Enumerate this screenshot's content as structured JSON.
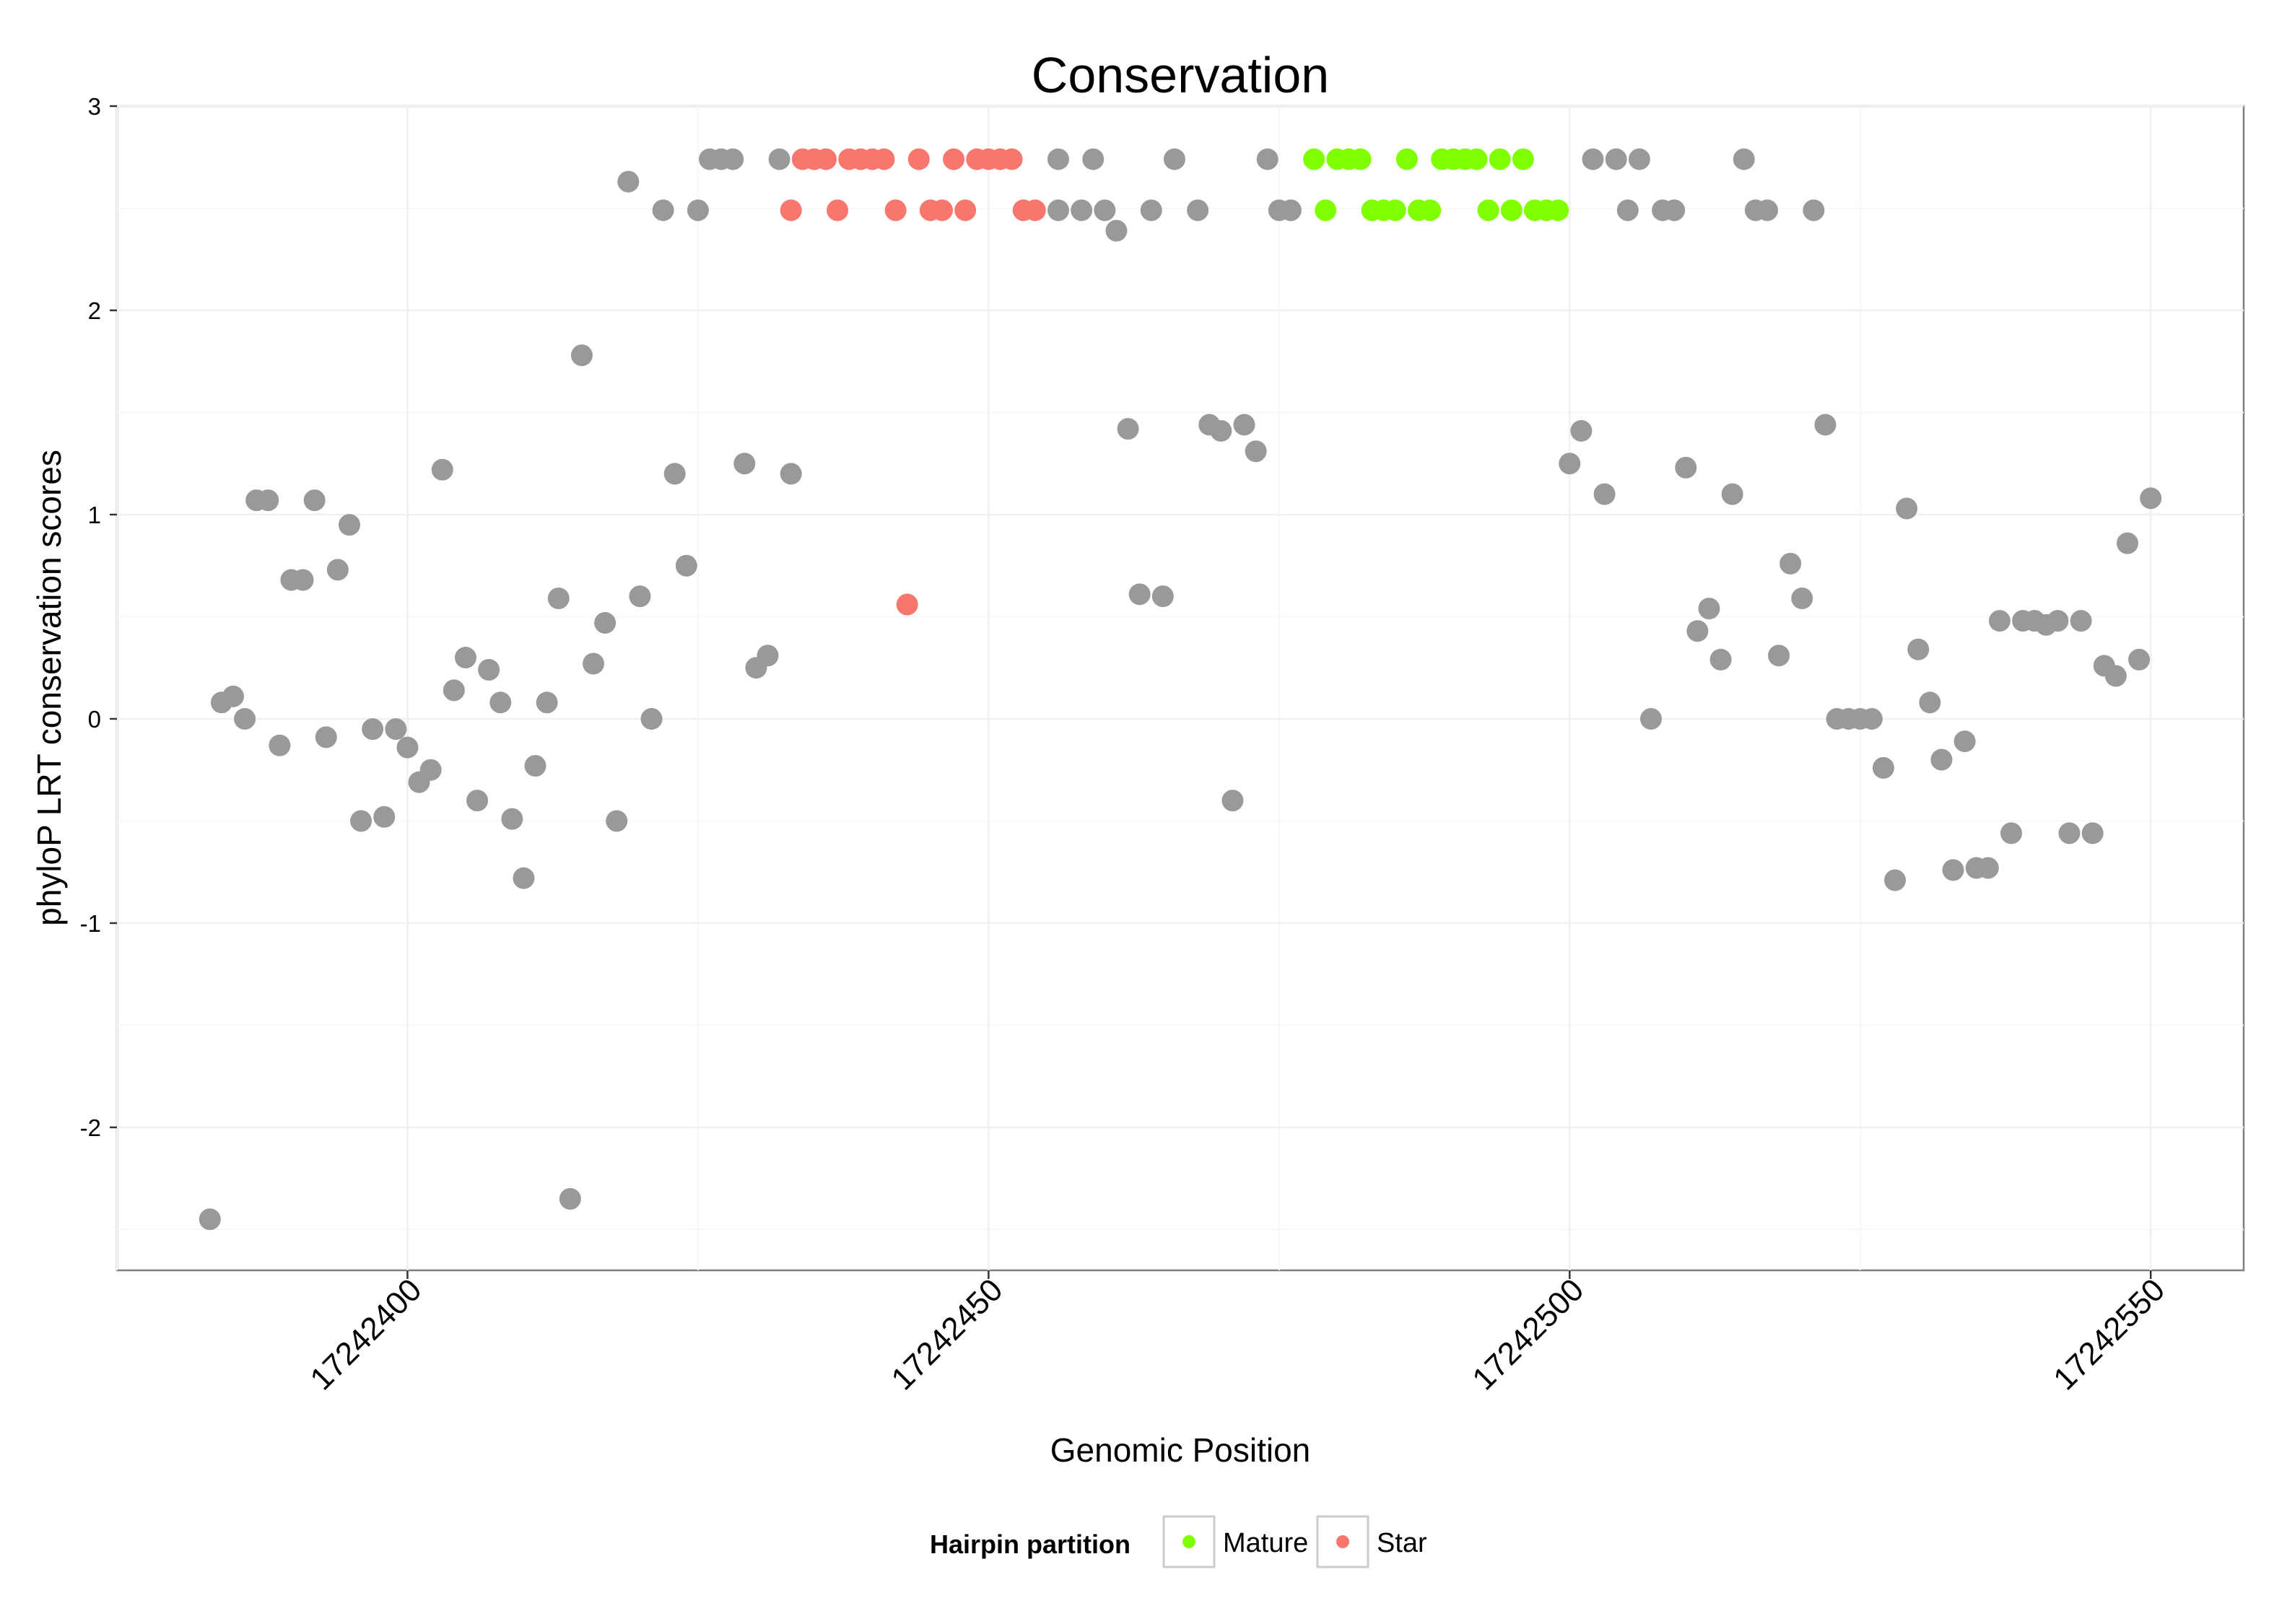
{
  "chart_data": {
    "type": "scatter",
    "title": "Conservation",
    "xlabel": "Genomic Position",
    "ylabel": "phyloP LRT conservation scores",
    "xlim": [
      17242375,
      17242558
    ],
    "ylim": [
      -2.7,
      3
    ],
    "x_ticks": [
      17242400,
      17242450,
      17242500,
      17242550
    ],
    "x_tick_labels": [
      "17242400",
      "17242450",
      "17242500",
      "17242550"
    ],
    "y_ticks": [
      -2,
      -1,
      0,
      1,
      2,
      3
    ],
    "y_tick_labels": [
      "-2",
      "-1",
      "0",
      "1",
      "2",
      "3"
    ],
    "grid": true,
    "legend": {
      "title": "Hairpin partition",
      "position": "bottom",
      "entries": [
        {
          "label": "Mature",
          "color": "#7FFF00"
        },
        {
          "label": "Star",
          "color": "#F8766D"
        }
      ]
    },
    "colors": {
      "other": "#999999",
      "mature": "#7FFF00",
      "star": "#F8766D"
    },
    "series": [
      {
        "partition": "other",
        "color": "#999999",
        "x": [
          17242383,
          17242384,
          17242385,
          17242386,
          17242387,
          17242388,
          17242389,
          17242390,
          17242391,
          17242392,
          17242393,
          17242394,
          17242395,
          17242396,
          17242397,
          17242398,
          17242399,
          17242400,
          17242401,
          17242402,
          17242403,
          17242404,
          17242405,
          17242406,
          17242407,
          17242408,
          17242409,
          17242410,
          17242411,
          17242412,
          17242413,
          17242414,
          17242415,
          17242416,
          17242417,
          17242418,
          17242419,
          17242420,
          17242421,
          17242422,
          17242423,
          17242424,
          17242425,
          17242426,
          17242427,
          17242428,
          17242429,
          17242430,
          17242431,
          17242432,
          17242433,
          17242456,
          17242456,
          17242458,
          17242459,
          17242460,
          17242461,
          17242462,
          17242463,
          17242464,
          17242465,
          17242466,
          17242468,
          17242469,
          17242470,
          17242471,
          17242472,
          17242473,
          17242474,
          17242475,
          17242476,
          17242500,
          17242501,
          17242502,
          17242503,
          17242504,
          17242505,
          17242506,
          17242507,
          17242508,
          17242509,
          17242510,
          17242511,
          17242512,
          17242513,
          17242514,
          17242515,
          17242516,
          17242517,
          17242518,
          17242519,
          17242520,
          17242521,
          17242522,
          17242523,
          17242524,
          17242525,
          17242526,
          17242527,
          17242528,
          17242529,
          17242530,
          17242531,
          17242532,
          17242533,
          17242534,
          17242535,
          17242536,
          17242537,
          17242538,
          17242539,
          17242540,
          17242541,
          17242542,
          17242543,
          17242544,
          17242545,
          17242546,
          17242547,
          17242548,
          17242549,
          17242550
        ],
        "y": [
          -2.45,
          0.08,
          0.11,
          0,
          1.07,
          1.07,
          -0.13,
          0.68,
          0.68,
          1.07,
          -0.09,
          0.73,
          0.95,
          -0.5,
          -0.05,
          -0.48,
          -0.05,
          -0.14,
          -0.31,
          -0.25,
          1.22,
          0.14,
          0.3,
          -0.4,
          0.24,
          0.08,
          -0.49,
          -0.78,
          -0.23,
          0.08,
          0.59,
          -2.35,
          1.78,
          0.27,
          0.47,
          -0.5,
          2.63,
          0.6,
          0,
          2.49,
          1.2,
          0.75,
          2.49,
          2.74,
          2.74,
          2.74,
          1.25,
          0.25,
          0.31,
          2.74,
          1.2,
          2.74,
          2.49,
          2.49,
          2.74,
          2.49,
          2.39,
          1.42,
          0.61,
          2.49,
          0.6,
          2.74,
          2.49,
          1.44,
          1.41,
          -0.4,
          1.44,
          1.31,
          2.74,
          2.49,
          2.49,
          1.25,
          1.41,
          2.74,
          1.1,
          2.74,
          2.49,
          2.74,
          0,
          2.49,
          2.49,
          1.23,
          0.43,
          0.54,
          0.29,
          1.1,
          2.74,
          2.49,
          2.49,
          0.31,
          0.76,
          0.59,
          2.49,
          1.44,
          0,
          0,
          0,
          0,
          -0.24,
          -0.79,
          1.03,
          0.34,
          0.08,
          -0.2,
          -0.74,
          -0.11,
          -0.73,
          -0.73,
          0.48,
          -0.56,
          0.48,
          0.48,
          0.46,
          0.48,
          -0.56,
          0.48,
          -0.56,
          0.26,
          0.21,
          0.86,
          0.29,
          1.08
        ]
      },
      {
        "partition": "Star",
        "color": "#F8766D",
        "x": [
          17242433,
          17242434,
          17242435,
          17242436,
          17242437,
          17242438,
          17242439,
          17242440,
          17242441,
          17242442,
          17242443,
          17242444,
          17242445,
          17242446,
          17242447,
          17242448,
          17242449,
          17242450,
          17242451,
          17242452,
          17242453,
          17242454
        ],
        "y": [
          2.49,
          2.74,
          2.74,
          2.74,
          2.49,
          2.74,
          2.74,
          2.74,
          2.74,
          2.49,
          0.56,
          2.74,
          2.49,
          2.49,
          2.74,
          2.49,
          2.74,
          2.74,
          2.74,
          2.74,
          2.49,
          2.49
        ]
      },
      {
        "partition": "Mature",
        "color": "#7FFF00",
        "x": [
          17242478,
          17242479,
          17242480,
          17242481,
          17242482,
          17242483,
          17242484,
          17242485,
          17242486,
          17242487,
          17242488,
          17242489,
          17242490,
          17242491,
          17242492,
          17242493,
          17242494,
          17242495,
          17242496,
          17242497,
          17242498,
          17242499
        ],
        "y": [
          2.74,
          2.49,
          2.74,
          2.74,
          2.74,
          2.49,
          2.49,
          2.49,
          2.74,
          2.49,
          2.49,
          2.74,
          2.74,
          2.74,
          2.74,
          2.49,
          2.74,
          2.49,
          2.74,
          2.49,
          2.49,
          2.49
        ]
      }
    ]
  }
}
